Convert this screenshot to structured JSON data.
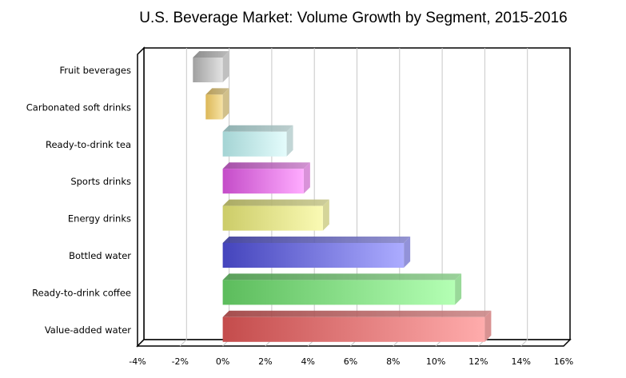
{
  "chart_data": {
    "type": "bar",
    "orientation": "horizontal",
    "style": "3d",
    "title": "U.S. Beverage Market: Volume Growth by Segment, 2015-2016",
    "xlabel": "",
    "ylabel": "",
    "xlim": [
      -4,
      16
    ],
    "x_ticks": [
      "-4%",
      "-2%",
      "0%",
      "2%",
      "4%",
      "6%",
      "8%",
      "10%",
      "12%",
      "14%",
      "16%"
    ],
    "tick_values": [
      -4,
      -2,
      0,
      2,
      4,
      6,
      8,
      10,
      12,
      14,
      16
    ],
    "grid": "vertical",
    "unit": "%",
    "categories": [
      "Fruit beverages",
      "Carbonated soft drinks",
      "Ready-to-drink tea",
      "Sports drinks",
      "Energy drinks",
      "Bottled water",
      "Ready-to-drink coffee",
      "Value-added water"
    ],
    "values": [
      -1.4,
      -0.8,
      3.0,
      3.8,
      4.7,
      8.5,
      10.9,
      12.3
    ],
    "colors": [
      [
        "#a0a0a0",
        "#e2e2e2"
      ],
      [
        "#dcb858",
        "#f6e2a4"
      ],
      [
        "#a4d4d4",
        "#e4fcfc"
      ],
      [
        "#c44cc8",
        "#ffacff"
      ],
      [
        "#cccc68",
        "#fafab4"
      ],
      [
        "#4444bc",
        "#acacff"
      ],
      [
        "#5cbc5c",
        "#b4ffb4"
      ],
      [
        "#c44c4c",
        "#ffacac"
      ]
    ]
  }
}
